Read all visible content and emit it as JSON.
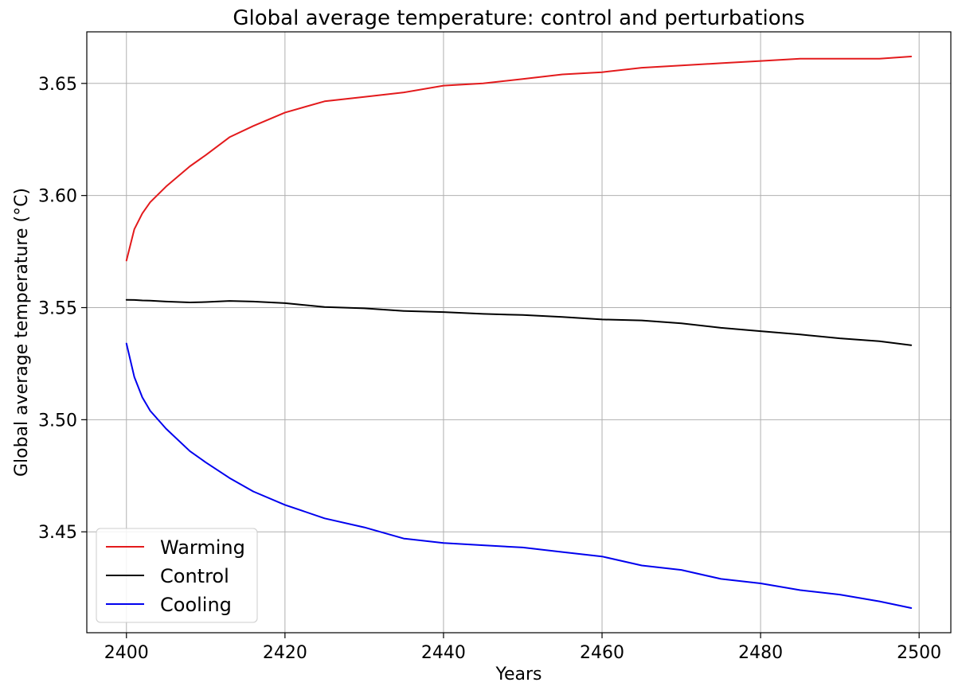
{
  "chart_data": {
    "type": "line",
    "title": "Global average temperature: control and perturbations",
    "xlabel": "Years",
    "ylabel": "Global average temperature (°C)",
    "xlim": [
      2395,
      2504
    ],
    "ylim": [
      3.405,
      3.673
    ],
    "xticks": [
      2400,
      2420,
      2440,
      2460,
      2480,
      2500
    ],
    "xtick_labels": [
      "2400",
      "2420",
      "2440",
      "2460",
      "2480",
      "2500"
    ],
    "yticks": [
      3.45,
      3.5,
      3.55,
      3.6,
      3.65
    ],
    "ytick_labels": [
      "3.45",
      "3.50",
      "3.55",
      "3.60",
      "3.65"
    ],
    "grid": true,
    "legend_position": "lower-left",
    "x": [
      2400,
      2401,
      2402,
      2403,
      2405,
      2408,
      2410,
      2413,
      2416,
      2420,
      2425,
      2430,
      2435,
      2440,
      2445,
      2450,
      2455,
      2460,
      2465,
      2470,
      2475,
      2480,
      2485,
      2490,
      2495,
      2499
    ],
    "series": [
      {
        "name": "Warming",
        "color": "#e31a1c",
        "values": [
          3.571,
          3.585,
          3.592,
          3.597,
          3.604,
          3.613,
          3.618,
          3.626,
          3.631,
          3.637,
          3.642,
          3.644,
          3.646,
          3.649,
          3.65,
          3.652,
          3.654,
          3.655,
          3.657,
          3.658,
          3.659,
          3.66,
          3.661,
          3.661,
          3.661,
          3.662
        ]
      },
      {
        "name": "Control",
        "color": "#000000",
        "values": [
          3.5535,
          3.5534,
          3.5532,
          3.5531,
          3.5527,
          3.5523,
          3.5525,
          3.553,
          3.5527,
          3.552,
          3.5503,
          3.5497,
          3.5485,
          3.548,
          3.5472,
          3.5467,
          3.5458,
          3.5447,
          3.5443,
          3.543,
          3.541,
          3.5395,
          3.538,
          3.5363,
          3.535,
          3.5332
        ]
      },
      {
        "name": "Cooling",
        "color": "#0000ee",
        "values": [
          3.534,
          3.519,
          3.51,
          3.504,
          3.496,
          3.486,
          3.481,
          3.474,
          3.468,
          3.462,
          3.456,
          3.452,
          3.447,
          3.445,
          3.444,
          3.443,
          3.441,
          3.439,
          3.435,
          3.433,
          3.429,
          3.427,
          3.424,
          3.422,
          3.419,
          3.416
        ]
      }
    ]
  }
}
